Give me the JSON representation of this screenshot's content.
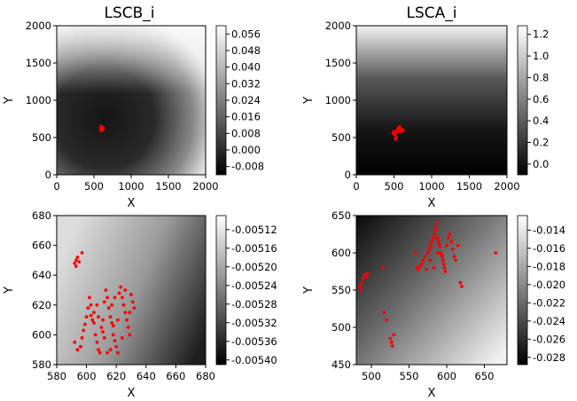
{
  "chart_data": [
    {
      "type": "heatmap",
      "title": "LSCB_i",
      "xlabel": "X",
      "ylabel": "Y",
      "xlim": [
        0,
        2000
      ],
      "ylim": [
        0,
        2000
      ],
      "xticks": [
        "0",
        "500",
        "1000",
        "1500",
        "2000"
      ],
      "yticks": [
        "0",
        "500",
        "1000",
        "1500",
        "2000"
      ],
      "colorbar": {
        "min": -0.012,
        "max": 0.06,
        "ticks": [
          "-0.008",
          "0.000",
          "0.008",
          "0.016",
          "0.024",
          "0.032",
          "0.040",
          "0.048",
          "0.056"
        ]
      },
      "points_color": "#ff0000",
      "points": [
        [
          600,
          620
        ],
        [
          610,
          640
        ],
        [
          590,
          610
        ],
        [
          620,
          630
        ],
        [
          605,
          600
        ],
        [
          615,
          615
        ],
        [
          598,
          628
        ],
        [
          612,
          605
        ],
        [
          600,
          590
        ],
        [
          625,
          610
        ],
        [
          595,
          648
        ],
        [
          608,
          635
        ]
      ]
    },
    {
      "type": "heatmap",
      "title": "LSCA_i",
      "xlabel": "X",
      "ylabel": "Y",
      "xlim": [
        0,
        2000
      ],
      "ylim": [
        0,
        2000
      ],
      "xticks": [
        "0",
        "500",
        "1000",
        "1500",
        "2000"
      ],
      "yticks": [
        "0",
        "500",
        "1000",
        "1500",
        "2000"
      ],
      "colorbar": {
        "min": -0.1,
        "max": 1.28,
        "ticks": [
          "0.0",
          "0.2",
          "0.4",
          "0.6",
          "0.8",
          "1.0",
          "1.2"
        ]
      },
      "points_color": "#ff0000",
      "points": [
        [
          490,
          560
        ],
        [
          500,
          580
        ],
        [
          520,
          480
        ],
        [
          530,
          500
        ],
        [
          560,
          590
        ],
        [
          570,
          600
        ],
        [
          580,
          620
        ],
        [
          590,
          610
        ],
        [
          600,
          580
        ],
        [
          620,
          600
        ],
        [
          560,
          630
        ],
        [
          575,
          640
        ],
        [
          550,
          610
        ],
        [
          510,
          540
        ],
        [
          540,
          570
        ],
        [
          585,
          590
        ]
      ]
    },
    {
      "type": "heatmap",
      "title": "",
      "xlabel": "X",
      "ylabel": "Y",
      "xlim": [
        580,
        680
      ],
      "ylim": [
        580,
        680
      ],
      "xticks": [
        "580",
        "600",
        "620",
        "640",
        "660",
        "680"
      ],
      "yticks": [
        "580",
        "600",
        "620",
        "640",
        "660",
        "680"
      ],
      "colorbar": {
        "min": -0.00541,
        "max": -0.00509,
        "ticks": [
          "-0.00540",
          "-0.00536",
          "-0.00532",
          "-0.00528",
          "-0.00524",
          "-0.00520",
          "-0.00516",
          "-0.00512"
        ]
      },
      "points_color": "#ff0000",
      "points": [
        [
          592,
          648
        ],
        [
          593,
          650
        ],
        [
          594,
          652
        ],
        [
          595,
          649
        ],
        [
          597,
          655
        ],
        [
          593,
          646
        ],
        [
          592,
          595
        ],
        [
          594,
          590
        ],
        [
          596,
          592
        ],
        [
          597,
          598
        ],
        [
          598,
          603
        ],
        [
          599,
          607
        ],
        [
          600,
          612
        ],
        [
          601,
          618
        ],
        [
          602,
          625
        ],
        [
          603,
          620
        ],
        [
          604,
          610
        ],
        [
          605,
          615
        ],
        [
          606,
          600
        ],
        [
          607,
          595
        ],
        [
          608,
          590
        ],
        [
          609,
          588
        ],
        [
          610,
          605
        ],
        [
          611,
          610
        ],
        [
          612,
          622
        ],
        [
          613,
          630
        ],
        [
          614,
          625
        ],
        [
          615,
          618
        ],
        [
          616,
          612
        ],
        [
          617,
          608
        ],
        [
          618,
          600
        ],
        [
          619,
          596
        ],
        [
          620,
          592
        ],
        [
          621,
          588
        ],
        [
          622,
          628
        ],
        [
          623,
          632
        ],
        [
          624,
          625
        ],
        [
          625,
          620
        ],
        [
          626,
          615
        ],
        [
          627,
          610
        ],
        [
          628,
          605
        ],
        [
          629,
          600
        ],
        [
          630,
          627
        ],
        [
          631,
          622
        ],
        [
          632,
          618
        ],
        [
          614,
          588
        ],
        [
          612,
          598
        ],
        [
          608,
          612
        ],
        [
          603,
          613
        ],
        [
          605,
          608
        ],
        [
          617,
          620
        ],
        [
          619,
          625
        ],
        [
          621,
          610
        ],
        [
          618,
          606
        ],
        [
          616,
          590
        ],
        [
          611,
          602
        ],
        [
          607,
          620
        ],
        [
          624,
          598
        ],
        [
          626,
          630
        ],
        [
          629,
          615
        ]
      ]
    },
    {
      "type": "heatmap",
      "title": "",
      "xlabel": "X",
      "ylabel": "Y",
      "xlim": [
        480,
        680
      ],
      "ylim": [
        450,
        650
      ],
      "xticks": [
        "500",
        "550",
        "600",
        "650"
      ],
      "yticks": [
        "450",
        "500",
        "550",
        "600",
        "650"
      ],
      "colorbar": {
        "min": -0.0288,
        "max": -0.0124,
        "ticks": [
          "-0.028",
          "-0.026",
          "-0.024",
          "-0.022",
          "-0.020",
          "-0.018",
          "-0.016",
          "-0.014"
        ]
      },
      "points_color": "#ff0000",
      "points": [
        [
          485,
          555
        ],
        [
          487,
          560
        ],
        [
          489,
          565
        ],
        [
          491,
          570
        ],
        [
          493,
          568
        ],
        [
          495,
          572
        ],
        [
          486,
          550
        ],
        [
          515,
          580
        ],
        [
          517,
          520
        ],
        [
          520,
          510
        ],
        [
          525,
          485
        ],
        [
          527,
          480
        ],
        [
          528,
          475
        ],
        [
          530,
          490
        ],
        [
          558,
          600
        ],
        [
          560,
          580
        ],
        [
          562,
          578
        ],
        [
          565,
          582
        ],
        [
          567,
          585
        ],
        [
          569,
          590
        ],
        [
          571,
          595
        ],
        [
          573,
          578
        ],
        [
          575,
          600
        ],
        [
          577,
          605
        ],
        [
          579,
          610
        ],
        [
          580,
          615
        ],
        [
          582,
          620
        ],
        [
          584,
          625
        ],
        [
          585,
          630
        ],
        [
          586,
          635
        ],
        [
          587,
          640
        ],
        [
          588,
          620
        ],
        [
          589,
          615
        ],
        [
          590,
          612
        ],
        [
          591,
          608
        ],
        [
          592,
          600
        ],
        [
          593,
          598
        ],
        [
          594,
          595
        ],
        [
          595,
          590
        ],
        [
          596,
          585
        ],
        [
          597,
          580
        ],
        [
          598,
          575
        ],
        [
          600,
          610
        ],
        [
          602,
          620
        ],
        [
          604,
          625
        ],
        [
          606,
          615
        ],
        [
          608,
          605
        ],
        [
          610,
          595
        ],
        [
          612,
          590
        ],
        [
          615,
          610
        ],
        [
          618,
          560
        ],
        [
          620,
          555
        ],
        [
          665,
          600
        ],
        [
          578,
          590
        ],
        [
          583,
          580
        ],
        [
          588,
          600
        ]
      ]
    }
  ]
}
